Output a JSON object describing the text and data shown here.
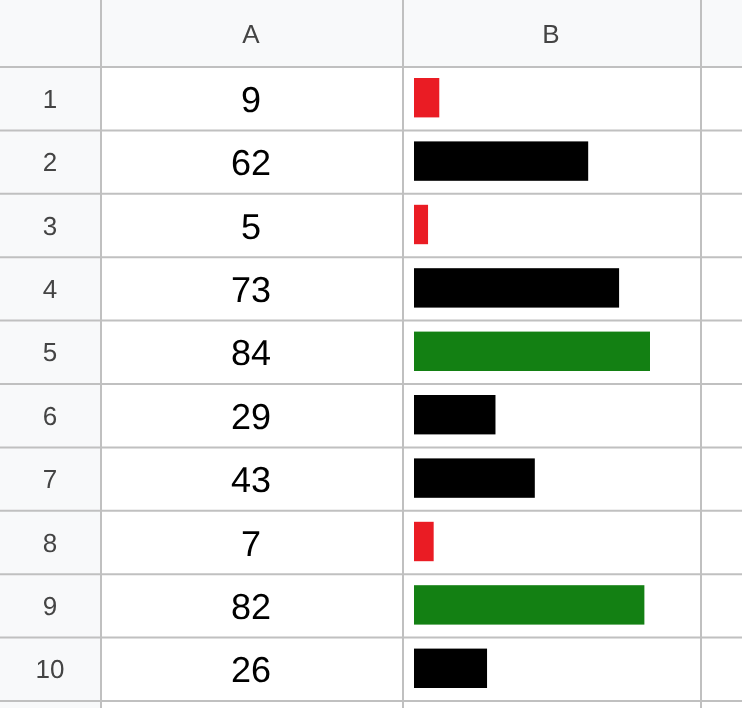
{
  "chart_data": {
    "type": "bar",
    "orientation": "horizontal",
    "categories": [
      "1",
      "2",
      "3",
      "4",
      "5",
      "6",
      "7",
      "8",
      "9",
      "10"
    ],
    "values": [
      9,
      62,
      5,
      73,
      84,
      29,
      43,
      7,
      82,
      26
    ],
    "colors": [
      "#ea1c24",
      "#000000",
      "#ea1c24",
      "#000000",
      "#138013",
      "#000000",
      "#000000",
      "#ea1c24",
      "#138013",
      "#000000"
    ],
    "data_labels": true,
    "grid": true,
    "annotations": [
      "A",
      "B"
    ]
  }
}
